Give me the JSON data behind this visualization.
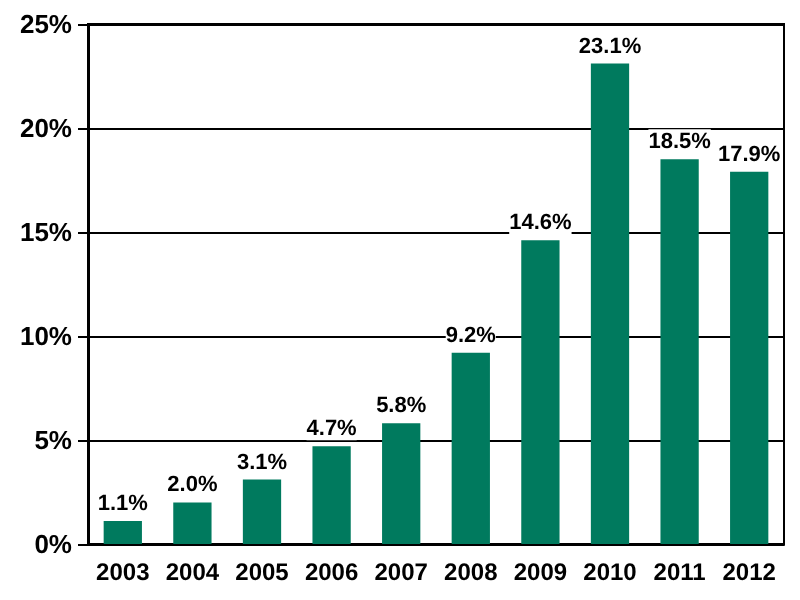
{
  "chart_data": {
    "type": "bar",
    "categories": [
      "2003",
      "2004",
      "2005",
      "2006",
      "2007",
      "2008",
      "2009",
      "2010",
      "2011",
      "2012"
    ],
    "values": [
      1.1,
      2.0,
      3.1,
      4.7,
      5.8,
      9.2,
      14.6,
      23.1,
      18.5,
      17.9
    ],
    "value_labels": [
      "1.1%",
      "2.0%",
      "3.1%",
      "4.7%",
      "5.8%",
      "9.2%",
      "14.6%",
      "23.1%",
      "18.5%",
      "17.9%"
    ],
    "color": "#007a5e",
    "ylim": [
      0,
      25
    ],
    "yticks": [
      {
        "value": 0,
        "label": "0%"
      },
      {
        "value": 5,
        "label": "5%"
      },
      {
        "value": 10,
        "label": "10%"
      },
      {
        "value": 15,
        "label": "15%"
      },
      {
        "value": 20,
        "label": "20%"
      },
      {
        "value": 25,
        "label": "25%"
      }
    ],
    "grid": "y"
  }
}
